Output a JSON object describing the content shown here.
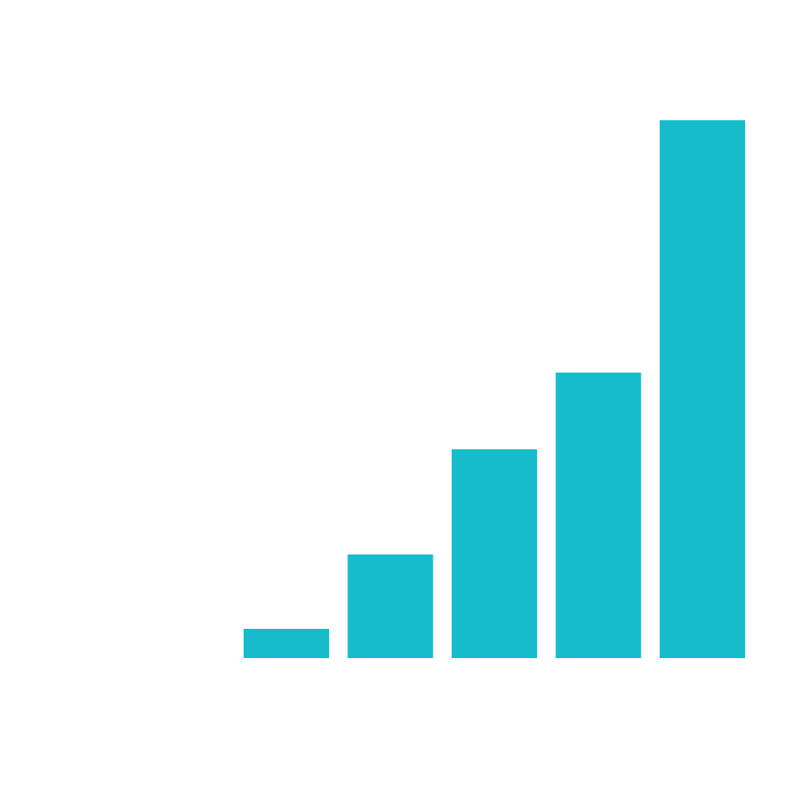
{
  "chart_data": {
    "type": "bar",
    "categories": [
      null,
      null,
      null,
      null,
      null
    ],
    "values": [
      37,
      131,
      264,
      361,
      680
    ],
    "color": "#17bdcc",
    "ylim": [
      0,
      680
    ]
  }
}
